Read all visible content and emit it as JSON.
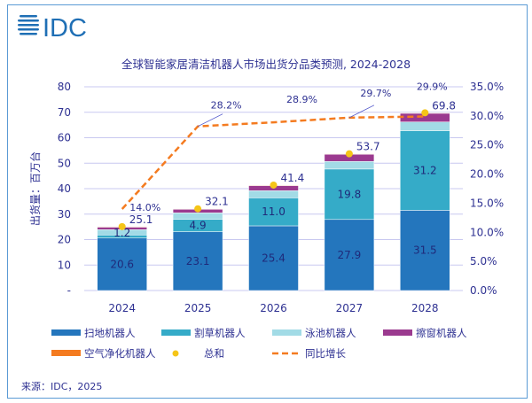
{
  "logo_text": "IDC",
  "chart_data": {
    "type": "bar",
    "stacked": true,
    "title": "全球智能家居清洁机器人市场出货分品类预测, 2024-2028",
    "ylabel": "出货量：百万台",
    "ylim": [
      0,
      80
    ],
    "y2lim": [
      0,
      35
    ],
    "yticks": [
      "-",
      "10",
      "20",
      "30",
      "40",
      "50",
      "60",
      "70",
      "80"
    ],
    "y2ticks": [
      "0.0%",
      "5.0%",
      "10.0%",
      "15.0%",
      "20.0%",
      "25.0%",
      "30.0%",
      "35.0%"
    ],
    "categories": [
      "2024",
      "2025",
      "2026",
      "2027",
      "2028"
    ],
    "grid": true,
    "legend_position": "bottom",
    "series": [
      {
        "name": "扫地机器人",
        "color": "#2476bd",
        "values": [
          20.6,
          23.1,
          25.4,
          27.9,
          31.5
        ],
        "labels": [
          "20.6",
          "23.1",
          "25.4",
          "27.9",
          "31.5"
        ]
      },
      {
        "name": "割草机器人",
        "color": "#35abc8",
        "values": [
          1.2,
          4.9,
          11.0,
          19.8,
          31.2
        ],
        "labels": [
          "1.2",
          "4.9",
          "11.0",
          "19.8",
          "31.2"
        ]
      },
      {
        "name": "泳池机器人",
        "color": "#a2dbe6",
        "values": [
          2.1,
          2.5,
          2.8,
          3.0,
          3.5
        ]
      },
      {
        "name": "擦窗机器人",
        "color": "#9b3a8f",
        "values": [
          1.0,
          1.4,
          2.0,
          2.8,
          3.4
        ]
      },
      {
        "name": "空气净化机器人",
        "color": "#f47b20",
        "values": [
          0.2,
          0.2,
          0.2,
          0.2,
          0.2
        ]
      }
    ],
    "total": {
      "name": "总和",
      "color": "#f5c518",
      "values": [
        25.1,
        32.1,
        41.4,
        53.7,
        69.8
      ],
      "labels": [
        "25.1",
        "32.1",
        "41.4",
        "53.7",
        "69.8"
      ]
    },
    "growth": {
      "name": "同比增长",
      "color": "#f47b20",
      "axis": "right",
      "values": [
        14.0,
        28.2,
        28.9,
        29.7,
        29.9
      ],
      "labels": [
        "14.0%",
        "28.2%",
        "28.9%",
        "29.7%",
        "29.9%"
      ]
    },
    "source": "来源：IDC，2025"
  }
}
